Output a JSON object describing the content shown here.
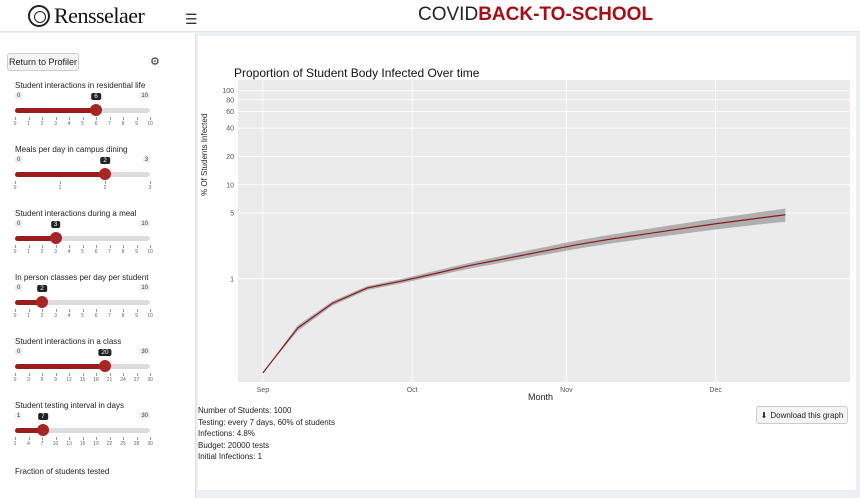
{
  "header": {
    "logo_text": "Rensselaer",
    "title_a": "COVID",
    "title_b": "BACK-TO-SCHOOL"
  },
  "sidebar": {
    "return_label": "Return to Profiler",
    "sliders": [
      {
        "label": "Student interactions in residential life",
        "min": 0,
        "max": 10,
        "value": 6,
        "ticks": [
          "0",
          "1",
          "2",
          "3",
          "4",
          "5",
          "6",
          "7",
          "8",
          "9",
          "10"
        ]
      },
      {
        "label": "Meals per day in campus dining",
        "min": 0,
        "max": 3,
        "value": 2,
        "ticks": [
          "0",
          "1",
          "2",
          "3"
        ]
      },
      {
        "label": "Student interactions during a meal",
        "min": 0,
        "max": 10,
        "value": 3,
        "ticks": [
          "0",
          "1",
          "2",
          "3",
          "4",
          "5",
          "6",
          "7",
          "8",
          "9",
          "10"
        ]
      },
      {
        "label": "In person classes per day per student",
        "min": 0,
        "max": 10,
        "value": 2,
        "ticks": [
          "0",
          "1",
          "2",
          "3",
          "4",
          "5",
          "6",
          "7",
          "8",
          "9",
          "10"
        ]
      },
      {
        "label": "Student interactions in a class",
        "min": 0,
        "max": 30,
        "value": 20,
        "ticks": [
          "0",
          "3",
          "6",
          "9",
          "12",
          "15",
          "18",
          "21",
          "24",
          "27",
          "30"
        ]
      },
      {
        "label": "Student testing interval in days",
        "min": 1,
        "max": 30,
        "value": 7,
        "ticks": [
          "1",
          "4",
          "7",
          "10",
          "13",
          "16",
          "19",
          "22",
          "25",
          "28",
          "30"
        ]
      }
    ],
    "last_label": "Fraction of students tested"
  },
  "main": {
    "info": [
      "Number of Students: 1000",
      "Testing: every 7 days, 60% of students",
      "Infections: 4.8%",
      "Budget: 20000 tests",
      "Initial Infections: 1"
    ],
    "download_label": "Download this graph"
  },
  "colors": {
    "accent": "#a50f15",
    "line": "#8b1a1a",
    "band": "#a0a0a0"
  },
  "chart_data": {
    "type": "line",
    "title": "Proportion of Student Body Infected Over time",
    "xlabel": "Month",
    "ylabel": "% Of Students Infected",
    "x_ticks": [
      "Sep",
      "Oct",
      "Nov",
      "Dec"
    ],
    "y_ticks": [
      1,
      5,
      10,
      20,
      40,
      60,
      80,
      100
    ],
    "y_scale": "log",
    "grid": true,
    "series": [
      {
        "x": [
          "2020-09-01",
          "2020-09-08",
          "2020-09-15",
          "2020-09-22",
          "2020-09-29",
          "2020-10-06",
          "2020-10-13",
          "2020-10-20",
          "2020-10-27",
          "2020-11-03",
          "2020-11-10",
          "2020-11-17",
          "2020-11-24",
          "2020-12-01",
          "2020-12-08",
          "2020-12-15"
        ],
        "y": [
          0.1,
          0.3,
          0.55,
          0.8,
          0.95,
          1.15,
          1.4,
          1.65,
          1.95,
          2.3,
          2.65,
          3.0,
          3.4,
          3.85,
          4.3,
          4.8
        ],
        "lower": [
          0.1,
          0.28,
          0.52,
          0.76,
          0.9,
          1.08,
          1.3,
          1.52,
          1.78,
          2.08,
          2.38,
          2.68,
          3.0,
          3.35,
          3.7,
          4.05
        ],
        "upper": [
          0.1,
          0.32,
          0.58,
          0.84,
          1.0,
          1.23,
          1.5,
          1.8,
          2.14,
          2.55,
          2.95,
          3.38,
          3.85,
          4.38,
          4.95,
          5.6
        ]
      }
    ]
  }
}
